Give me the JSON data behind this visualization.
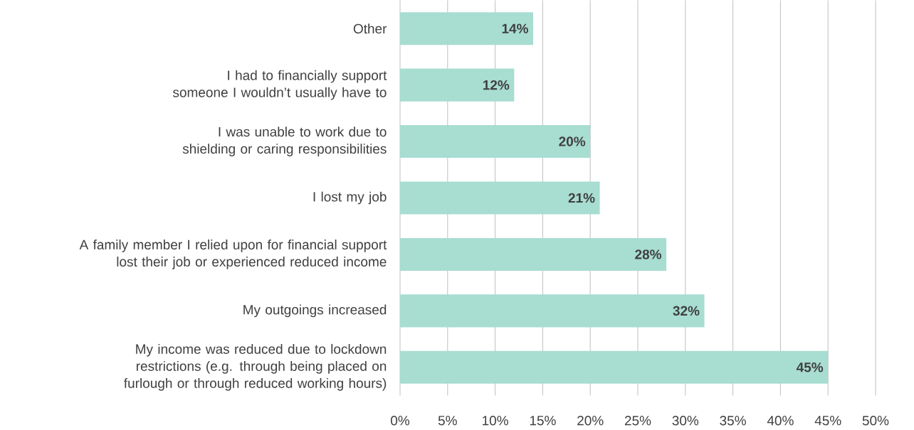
{
  "chart_data": {
    "type": "bar",
    "orientation": "horizontal",
    "categories": [
      "Other",
      "I had to financially support someone I wouldn’t usually have to",
      "I was unable to work due to shielding or caring responsibilities",
      "I lost my job",
      "A family member I relied upon for financial support lost their job or experienced reduced income",
      "My outgoings increased",
      "My income was reduced due to lockdown restrictions (e.g. through being placed on furlough or through reduced working hours)"
    ],
    "values": [
      14,
      12,
      20,
      21,
      28,
      32,
      45
    ],
    "value_labels": [
      "14%",
      "12%",
      "20%",
      "21%",
      "28%",
      "32%",
      "45%"
    ],
    "color": "#a8ddd1",
    "xlim": [
      0,
      50
    ],
    "xticks": [
      {
        "value": 0,
        "label": "0%"
      },
      {
        "value": 5,
        "label": "5%"
      },
      {
        "value": 10,
        "label": "10%"
      },
      {
        "value": 15,
        "label": "15%"
      },
      {
        "value": 20,
        "label": "20%"
      },
      {
        "value": 25,
        "label": "25%"
      },
      {
        "value": 30,
        "label": "30%"
      },
      {
        "value": 35,
        "label": "35%"
      },
      {
        "value": 40,
        "label": "40%"
      },
      {
        "value": 45,
        "label": "45%"
      },
      {
        "value": 50,
        "label": "50%"
      }
    ],
    "grid": "x"
  }
}
